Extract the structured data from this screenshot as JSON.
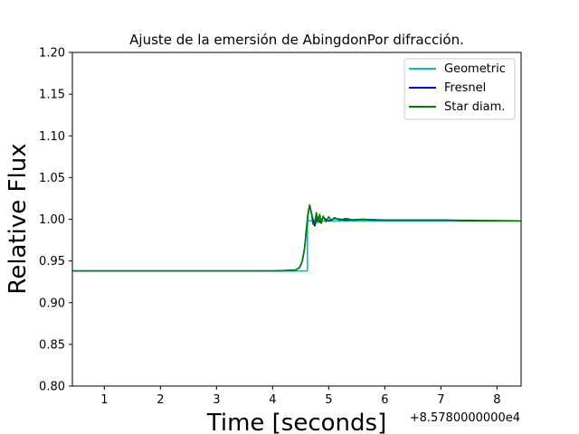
{
  "chart_data": {
    "type": "line",
    "title": "Ajuste de la emersión de AbingdonPor difracción.",
    "xlabel": "Time [seconds]",
    "ylabel": "Relative Flux",
    "x_offset_label": "+8.5780000000e4",
    "xlim": [
      0.43,
      8.43
    ],
    "ylim": [
      0.8,
      1.2
    ],
    "x_ticks": [
      1,
      2,
      3,
      4,
      5,
      6,
      7,
      8
    ],
    "x_tick_labels": [
      "1",
      "2",
      "3",
      "4",
      "5",
      "6",
      "7",
      "8"
    ],
    "y_ticks": [
      0.8,
      0.85,
      0.9,
      0.95,
      1.0,
      1.05,
      1.1,
      1.15,
      1.2
    ],
    "y_tick_labels": [
      "0.80",
      "0.85",
      "0.90",
      "0.95",
      "1.00",
      "1.05",
      "1.10",
      "1.15",
      "1.20"
    ],
    "grid": false,
    "legend_position": "top-right",
    "series": [
      {
        "name": "Geometric",
        "color": "#00bfbf",
        "x": [
          0.43,
          4.57,
          4.57,
          4.62,
          4.62,
          8.43
        ],
        "y": [
          0.938,
          0.938,
          0.938,
          0.938,
          0.998,
          0.998
        ]
      },
      {
        "name": "Fresnel",
        "color": "#0000ff",
        "x": [
          0.43,
          4.0,
          4.4,
          4.48,
          4.53,
          4.57,
          4.6,
          4.63,
          4.66,
          4.7,
          4.75,
          4.8,
          4.85,
          4.9,
          5.0,
          5.1,
          5.3,
          5.6,
          6.0,
          7.0,
          8.43
        ],
        "y": [
          0.938,
          0.938,
          0.939,
          0.942,
          0.95,
          0.965,
          0.985,
          1.005,
          1.017,
          1.005,
          0.992,
          1.003,
          0.996,
          1.002,
          0.998,
          1.001,
          0.999,
          1.0,
          0.999,
          0.999,
          0.998
        ]
      },
      {
        "name": "Star diam.",
        "color": "#008000",
        "x": [
          0.43,
          4.0,
          4.4,
          4.48,
          4.53,
          4.57,
          4.6,
          4.63,
          4.66,
          4.69,
          4.72,
          4.75,
          4.78,
          4.81,
          4.84,
          4.87,
          4.9,
          4.95,
          5.0,
          5.05,
          5.1,
          5.2,
          5.3,
          5.45,
          5.6,
          5.8,
          6.0,
          6.5,
          7.0,
          7.5,
          8.0,
          8.43
        ],
        "y": [
          0.938,
          0.938,
          0.939,
          0.942,
          0.95,
          0.966,
          0.987,
          1.007,
          1.017,
          1.008,
          0.994,
          0.996,
          1.008,
          0.996,
          1.006,
          0.995,
          1.004,
          0.997,
          1.003,
          0.998,
          1.002,
          0.999,
          1.001,
          0.999,
          1.0,
          0.999,
          0.999,
          0.999,
          0.999,
          0.998,
          0.998,
          0.998
        ]
      }
    ]
  }
}
